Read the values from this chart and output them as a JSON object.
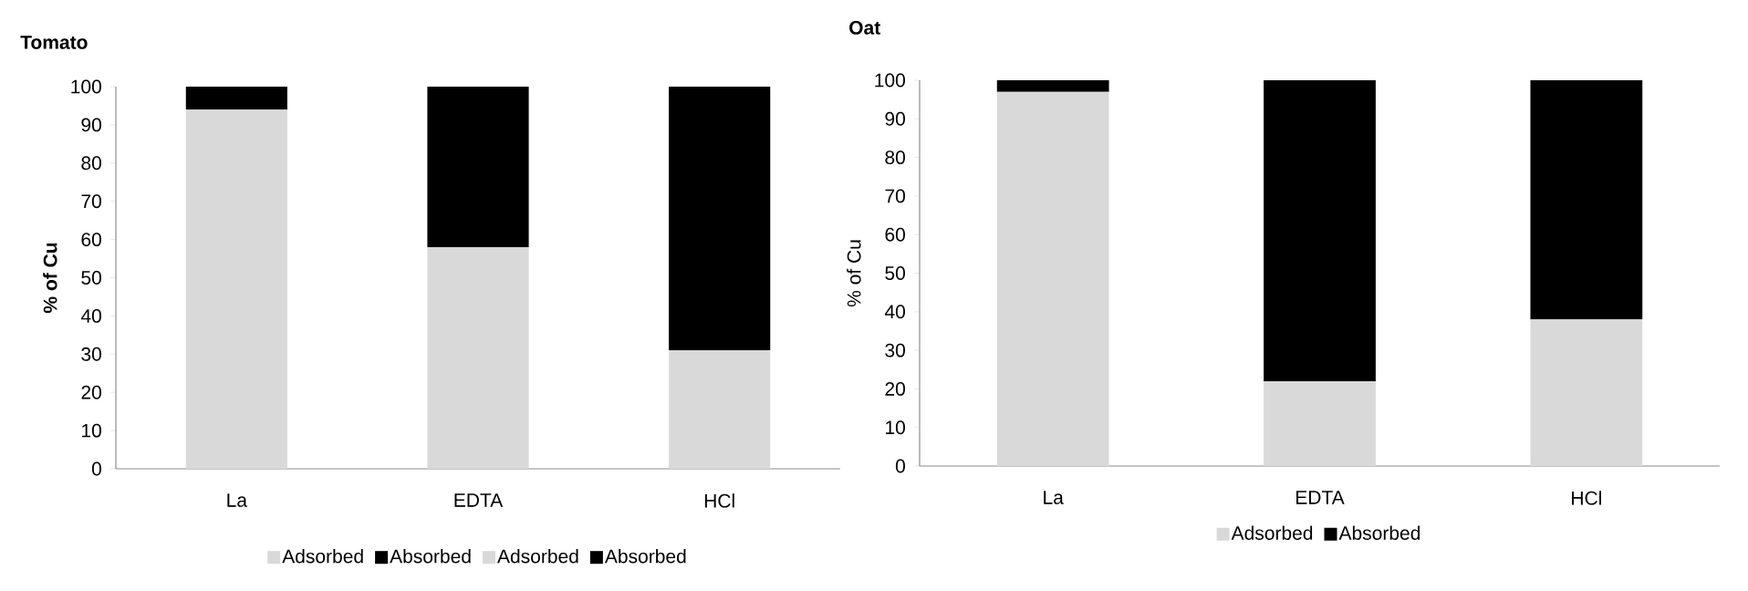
{
  "chart_data": [
    {
      "type": "bar",
      "title": "Tomato",
      "ylabel": "% of Cu",
      "stacked": true,
      "categories": [
        "La",
        "EDTA",
        "HCl"
      ],
      "series": [
        {
          "name": "Adsorbed",
          "color": "#d9d9d9",
          "values": [
            94,
            58,
            31
          ]
        },
        {
          "name": "Absorbed",
          "color": "#000000",
          "values": [
            6,
            42,
            69
          ]
        },
        {
          "name": "Adsorbed",
          "color": "#d9d9d9",
          "values": [
            null,
            null,
            null
          ]
        },
        {
          "name": "Absorbed",
          "color": "#000000",
          "values": [
            null,
            null,
            null
          ]
        }
      ],
      "ylim": [
        0,
        100
      ],
      "yticks": [
        0,
        10,
        20,
        30,
        40,
        50,
        60,
        70,
        80,
        90,
        100
      ],
      "grid": false,
      "legend": "bottom"
    },
    {
      "type": "bar",
      "title": "Oat",
      "ylabel": "% of Cu",
      "stacked": true,
      "categories": [
        "La",
        "EDTA",
        "HCl"
      ],
      "series": [
        {
          "name": "Adsorbed",
          "color": "#d9d9d9",
          "values": [
            97,
            22,
            38
          ]
        },
        {
          "name": "Absorbed",
          "color": "#000000",
          "values": [
            3,
            78,
            62
          ]
        }
      ],
      "ylim": [
        0,
        100
      ],
      "yticks": [
        0,
        10,
        20,
        30,
        40,
        50,
        60,
        70,
        80,
        90,
        100
      ],
      "grid": false,
      "legend": "bottom"
    }
  ]
}
